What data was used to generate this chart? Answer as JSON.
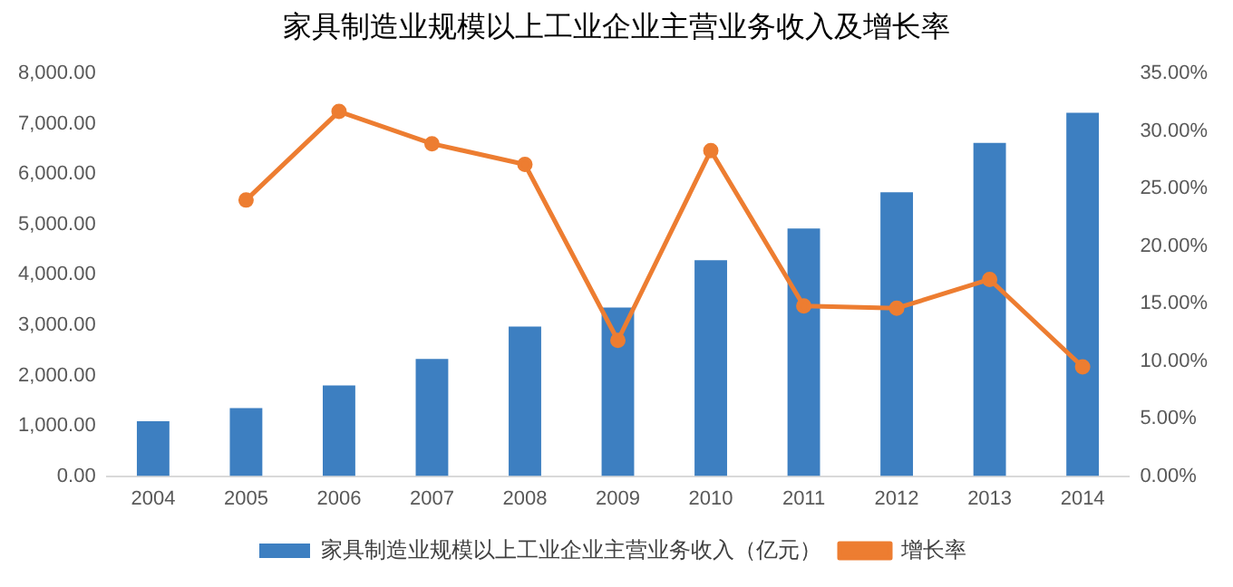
{
  "chart_data": {
    "type": "bar",
    "title": "家具制造业规模以上工业企业主营业务收入及增长率",
    "categories": [
      "2004",
      "2005",
      "2006",
      "2007",
      "2008",
      "2009",
      "2010",
      "2011",
      "2012",
      "2013",
      "2014"
    ],
    "series": [
      {
        "name": "家具制造业规模以上工业企业主营业务收入（亿元）",
        "color": "#3d7fc1",
        "values": [
          1090,
          1350,
          1800,
          2330,
          2970,
          3350,
          4290,
          4920,
          5640,
          6620,
          7220
        ]
      },
      {
        "name": "增长率",
        "type": "line",
        "axis": "y2",
        "color": "#ed7d31",
        "marker": "circle",
        "values": [
          null,
          24.0,
          31.7,
          28.9,
          27.1,
          11.8,
          28.3,
          14.8,
          14.6,
          17.1,
          9.5
        ]
      }
    ],
    "ylim": [
      0,
      8000
    ],
    "yticks": [
      {
        "value": 0,
        "label": "0.00"
      },
      {
        "value": 1000,
        "label": "1,000.00"
      },
      {
        "value": 2000,
        "label": "2,000.00"
      },
      {
        "value": 3000,
        "label": "3,000.00"
      },
      {
        "value": 4000,
        "label": "4,000.00"
      },
      {
        "value": 5000,
        "label": "5,000.00"
      },
      {
        "value": 6000,
        "label": "6,000.00"
      },
      {
        "value": 7000,
        "label": "7,000.00"
      },
      {
        "value": 8000,
        "label": "8,000.00"
      }
    ],
    "y2lim": [
      0,
      35
    ],
    "y2ticks": [
      {
        "value": 0,
        "label": "0.00%"
      },
      {
        "value": 5,
        "label": "5.00%"
      },
      {
        "value": 10,
        "label": "10.00%"
      },
      {
        "value": 15,
        "label": "15.00%"
      },
      {
        "value": 20,
        "label": "20.00%"
      },
      {
        "value": 25,
        "label": "25.00%"
      },
      {
        "value": 30,
        "label": "30.00%"
      },
      {
        "value": 35,
        "label": "35.00%"
      }
    ],
    "grid": false,
    "legend": "bottom"
  }
}
